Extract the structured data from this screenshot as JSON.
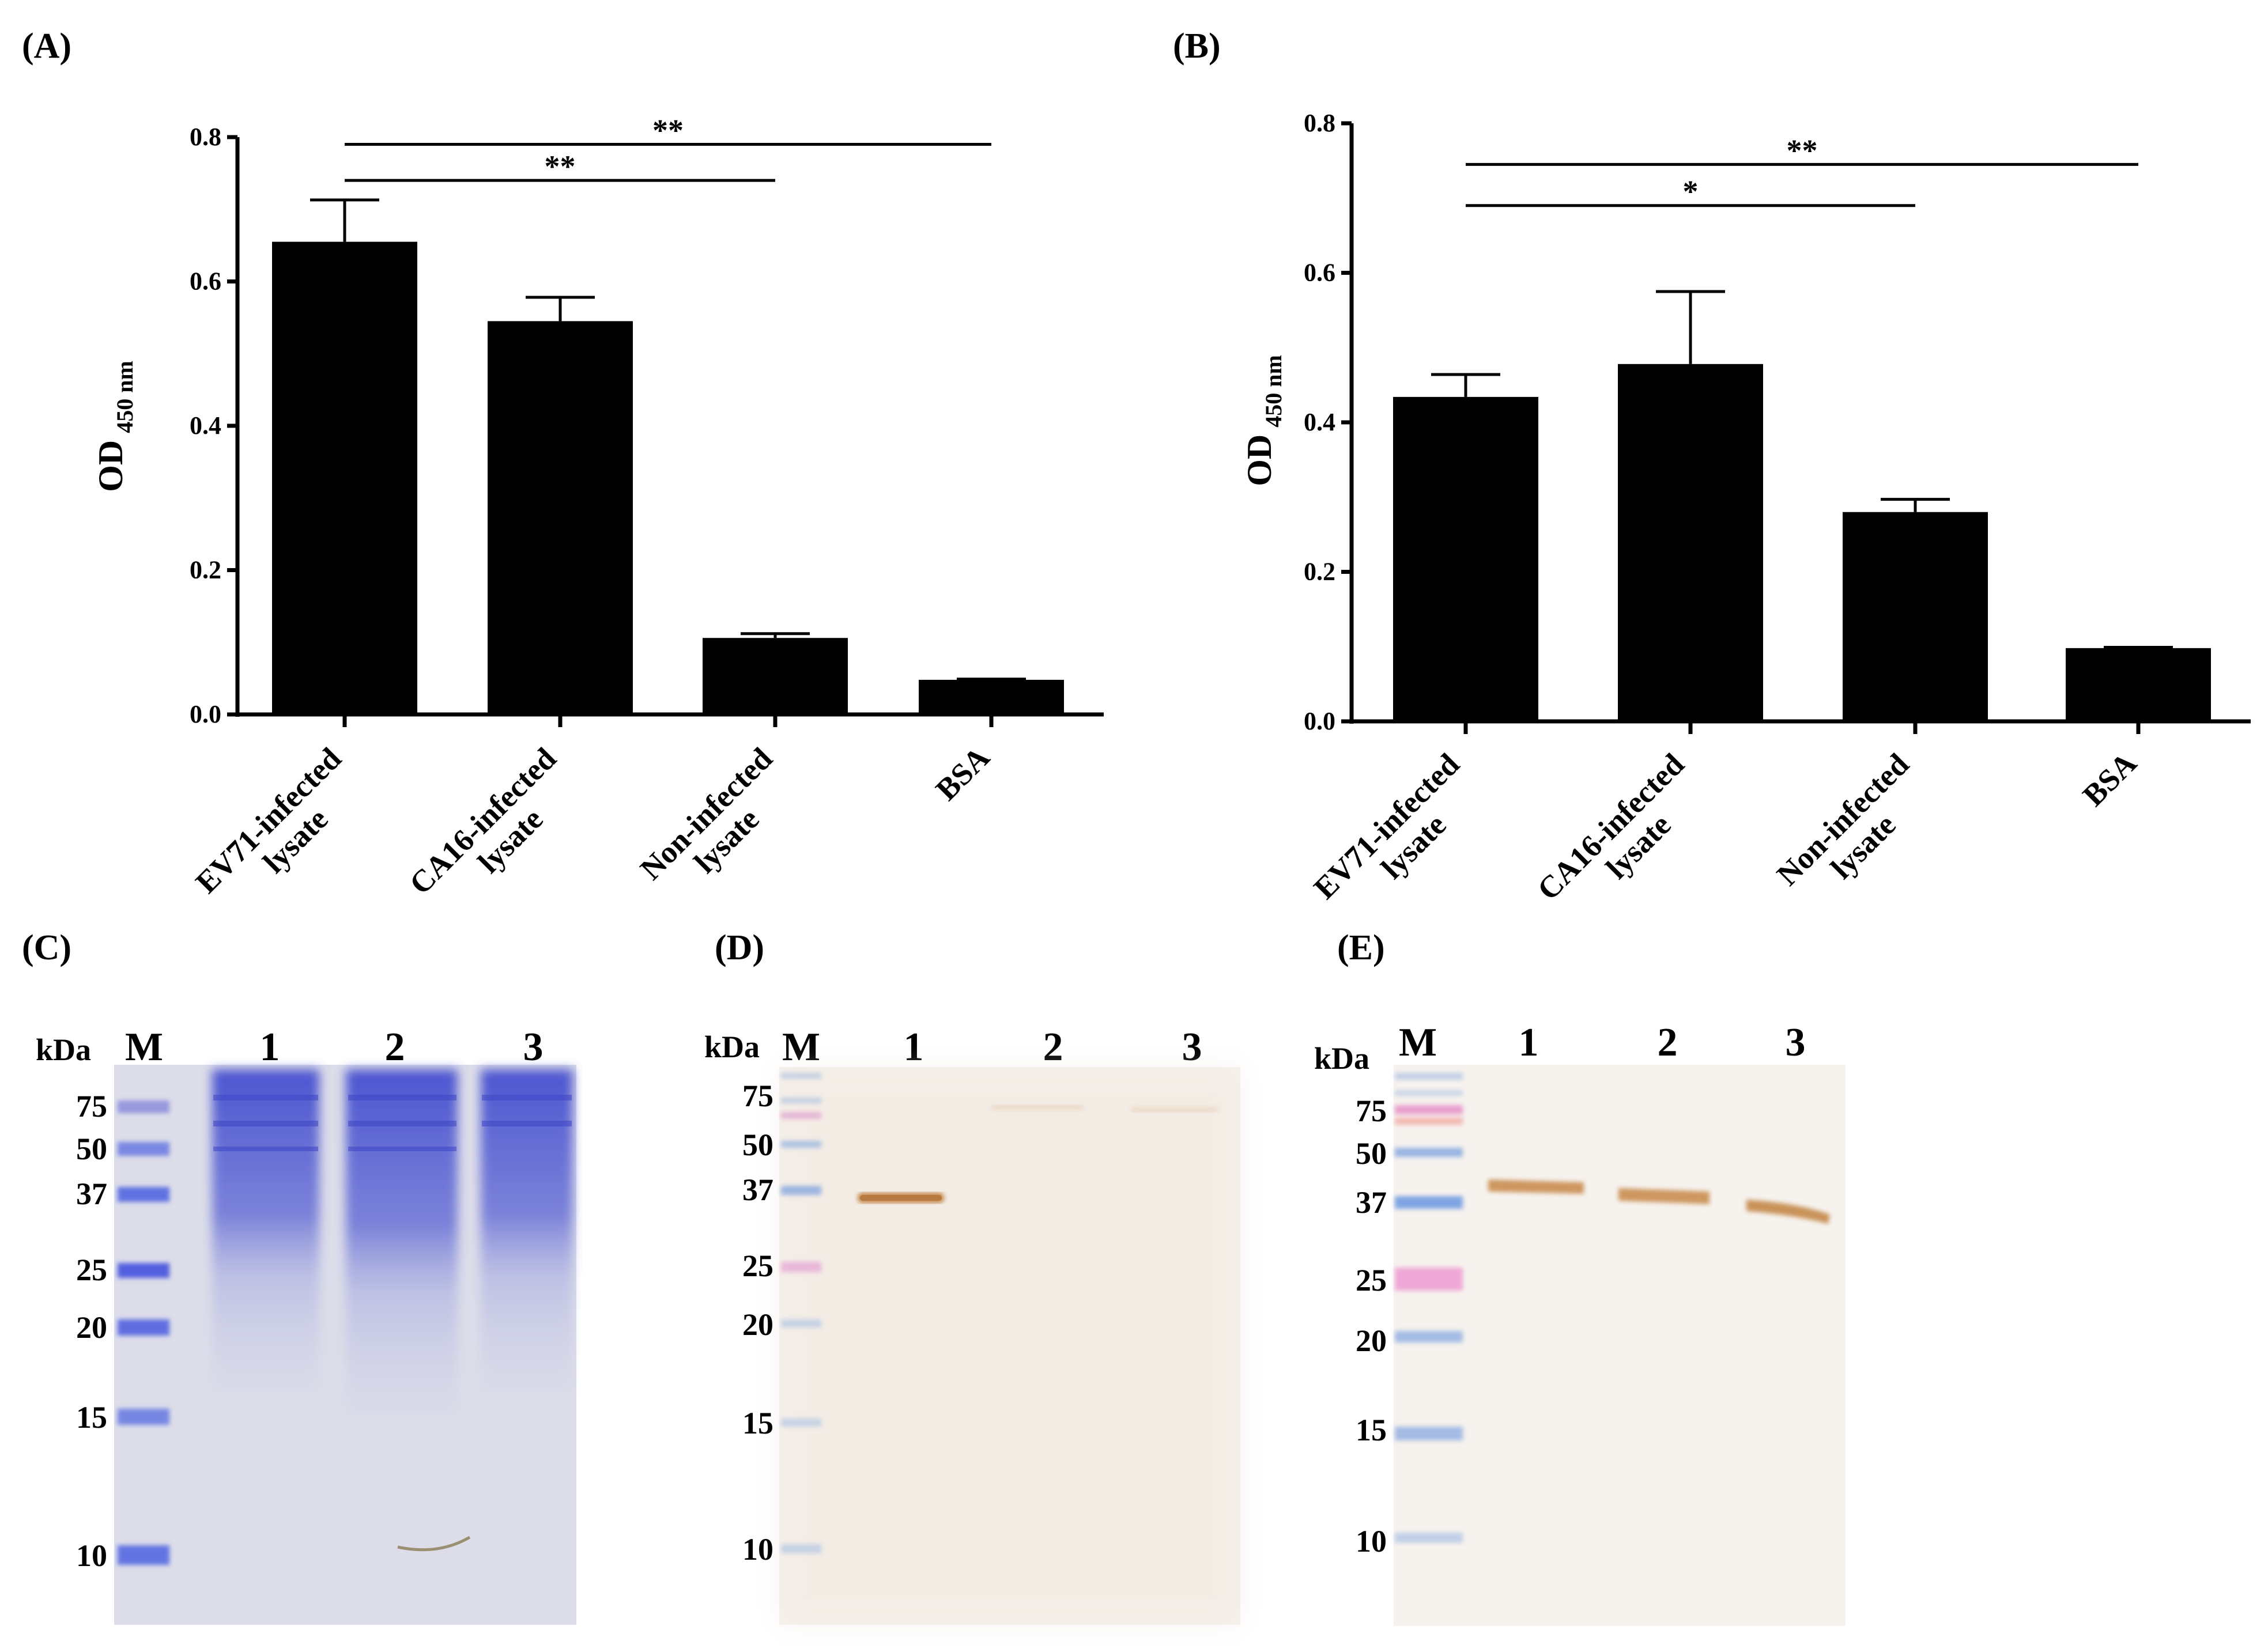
{
  "chart_data": [
    {
      "type": "bar",
      "panel": "(A)",
      "ylabel_main": "OD",
      "ylabel_sub": "450 nm",
      "ylim": [
        0,
        0.8
      ],
      "yticks": [
        "0.0",
        "0.2",
        "0.4",
        "0.6",
        "0.8"
      ],
      "categories": [
        [
          "EV71-infected",
          "lysate"
        ],
        [
          "CA16-infected",
          "lysate"
        ],
        [
          "Non-infected",
          "lysate"
        ],
        [
          "BSA"
        ]
      ],
      "values": [
        0.655,
        0.545,
        0.106,
        0.048
      ],
      "errors": [
        0.058,
        0.033,
        0.006,
        0.001
      ],
      "significance": [
        {
          "from": 0,
          "to": 3,
          "label": "**",
          "y": 0.79
        },
        {
          "from": 0,
          "to": 2,
          "label": "**",
          "y": 0.74
        }
      ]
    },
    {
      "type": "bar",
      "panel": "(B)",
      "ylabel_main": "OD",
      "ylabel_sub": "450 nm",
      "ylim": [
        0,
        0.8
      ],
      "yticks": [
        "0.0",
        "0.2",
        "0.4",
        "0.6",
        "0.8"
      ],
      "categories": [
        [
          "EV71-infected",
          "lysate"
        ],
        [
          "CA16-infected",
          "lysate"
        ],
        [
          "Non-infected",
          "lysate"
        ],
        [
          "BSA"
        ]
      ],
      "values": [
        0.434,
        0.478,
        0.28,
        0.098
      ],
      "errors": [
        0.03,
        0.097,
        0.017,
        0.001
      ],
      "significance": [
        {
          "from": 0,
          "to": 3,
          "label": "**",
          "y": 0.745
        },
        {
          "from": 0,
          "to": 2,
          "label": "*",
          "y": 0.69
        }
      ]
    }
  ],
  "gels": [
    {
      "panel": "(C)",
      "type": "coomassie",
      "unit": "kDa",
      "marker_label": "M",
      "lanes": [
        "1",
        "2",
        "3"
      ],
      "markers": [
        "75",
        "50",
        "37",
        "25",
        "20",
        "15",
        "10"
      ],
      "colors": {
        "bg": "#dcdde9",
        "stain": "#5a61d1",
        "ladder": "#4f5ee0"
      }
    },
    {
      "panel": "(D)",
      "type": "western",
      "unit": "kDa",
      "marker_label": "M",
      "lanes": [
        "1",
        "2",
        "3"
      ],
      "markers": [
        "75",
        "50",
        "37",
        "25",
        "20",
        "15",
        "10"
      ],
      "colors": {
        "bg": "#f6f1ec",
        "band": "#c4864a",
        "ladder": "#a4bcdf",
        "pink": "#e0a4cf"
      }
    },
    {
      "panel": "(E)",
      "type": "western",
      "unit": "kDa",
      "marker_label": "M",
      "lanes": [
        "1",
        "2",
        "3"
      ],
      "markers": [
        "75",
        "50",
        "37",
        "25",
        "20",
        "15",
        "10"
      ],
      "colors": {
        "bg": "#f6f2ee",
        "band": "#c98d50",
        "ladder": "#7fa5df",
        "pink": "#e68fc8"
      }
    }
  ]
}
